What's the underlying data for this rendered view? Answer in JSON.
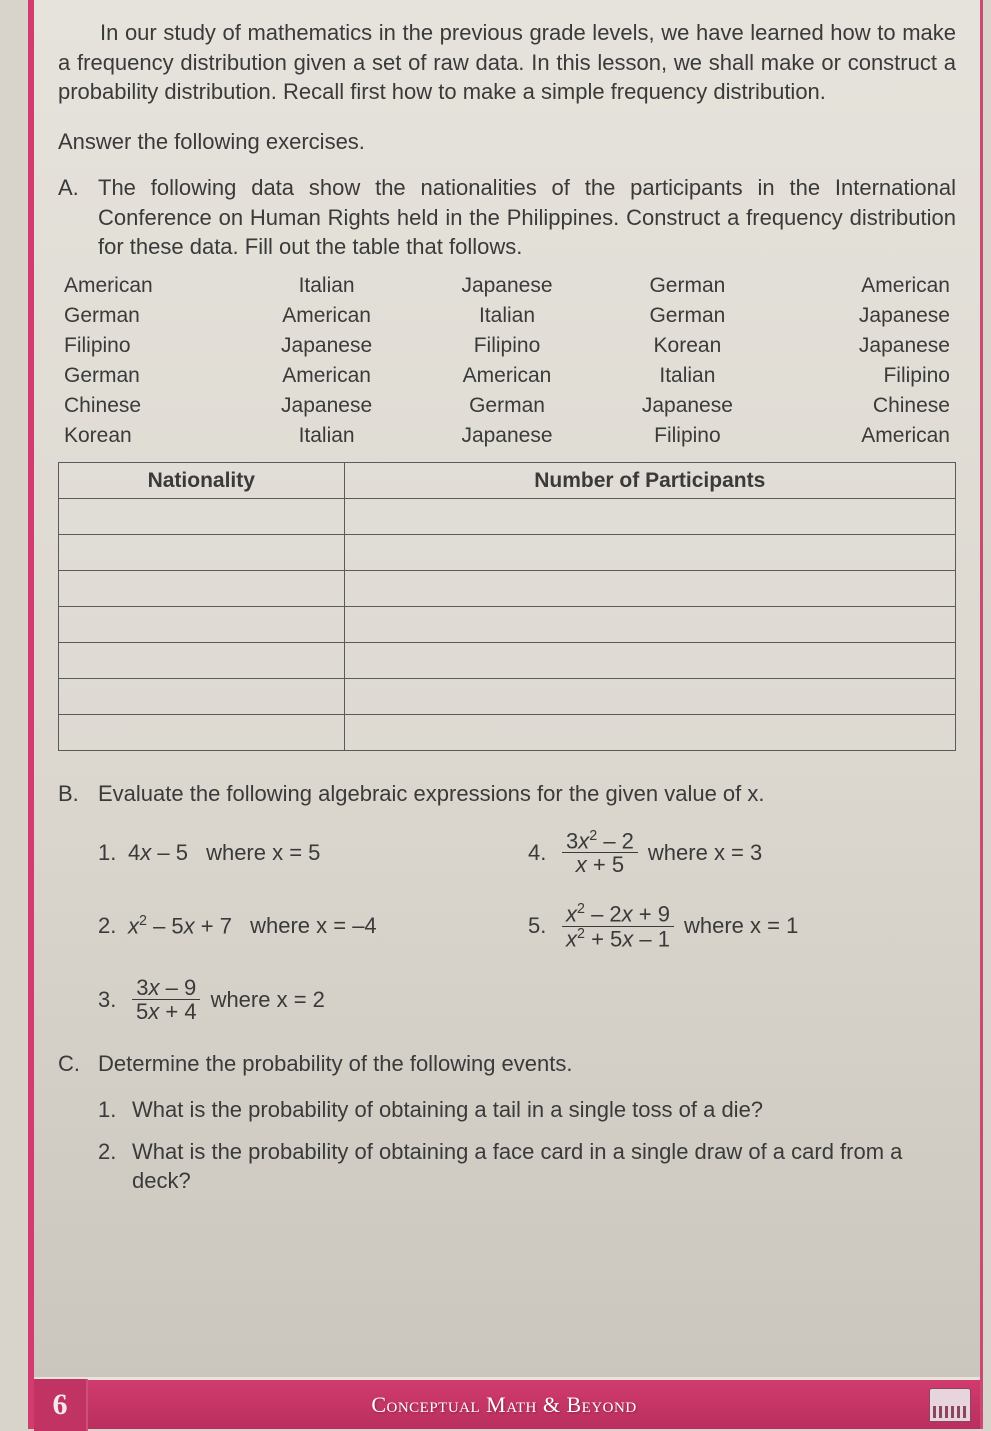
{
  "intro": "In our study of mathematics in the previous grade levels, we have learned how to make a frequency distribution given a set of raw data. In this lesson, we shall make or construct a probability distribution. Recall first how to make a simple frequency distribution.",
  "answer_heading": "Answer the following exercises.",
  "sectionA": {
    "letter": "A.",
    "text": "The following data show the nationalities of the participants in the International Conference on Human Rights held in the Philippines. Construct a frequency distribution for these data. Fill out the table that follows.",
    "data_rows": [
      [
        "American",
        "Italian",
        "Japanese",
        "German",
        "American"
      ],
      [
        "German",
        "American",
        "Italian",
        "German",
        "Japanese"
      ],
      [
        "Filipino",
        "Japanese",
        "Filipino",
        "Korean",
        "Japanese"
      ],
      [
        "German",
        "American",
        "American",
        "Italian",
        "Filipino"
      ],
      [
        "Chinese",
        "Japanese",
        "German",
        "Japanese",
        "Chinese"
      ],
      [
        "Korean",
        "Italian",
        "Japanese",
        "Filipino",
        "American"
      ]
    ],
    "table_headers": [
      "Nationality",
      "Number of Participants"
    ],
    "blank_rows": 7
  },
  "sectionB": {
    "letter": "B.",
    "text": "Evaluate the following algebraic expressions for the given value of x.",
    "items": [
      {
        "n": "1.",
        "expr_html": "4<span class='italic'>x</span> – 5",
        "where": "where x = 5"
      },
      {
        "n": "2.",
        "expr_html": "<span class='italic'>x</span><span class='sup'>2</span> – 5<span class='italic'>x</span> + 7",
        "where": "where x = –4"
      },
      {
        "n": "3.",
        "frac_num": "3<span class='italic'>x</span> – 9",
        "frac_den": "5<span class='italic'>x</span> + 4",
        "where": "where x = 2"
      },
      {
        "n": "4.",
        "frac_num": "3<span class='italic'>x</span><span class='sup'>2</span> – 2",
        "frac_den": "<span class='italic'>x</span> + 5",
        "where": "where x = 3"
      },
      {
        "n": "5.",
        "frac_num": "<span class='italic'>x</span><span class='sup'>2</span> – 2<span class='italic'>x</span> + 9",
        "frac_den": "<span class='italic'>x</span><span class='sup'>2</span> + 5<span class='italic'>x</span> – 1",
        "where": "where x = 1"
      }
    ]
  },
  "sectionC": {
    "letter": "C.",
    "text": "Determine the probability of the following events.",
    "questions": [
      {
        "n": "1.",
        "q": "What is the probability of obtaining a tail in a single toss of a die?"
      },
      {
        "n": "2.",
        "q": "What is the probability of obtaining a face card in a single draw of a card from a deck?"
      }
    ]
  },
  "footer": {
    "page_number": "6",
    "title": "Conceptual Math & Beyond"
  },
  "colors": {
    "accent": "#d13b6e",
    "text": "#3a3a3a",
    "page_bg_top": "#e6e3dc",
    "page_bg_bottom": "#c9c5bd",
    "footer_bg": "#b92f5e"
  }
}
